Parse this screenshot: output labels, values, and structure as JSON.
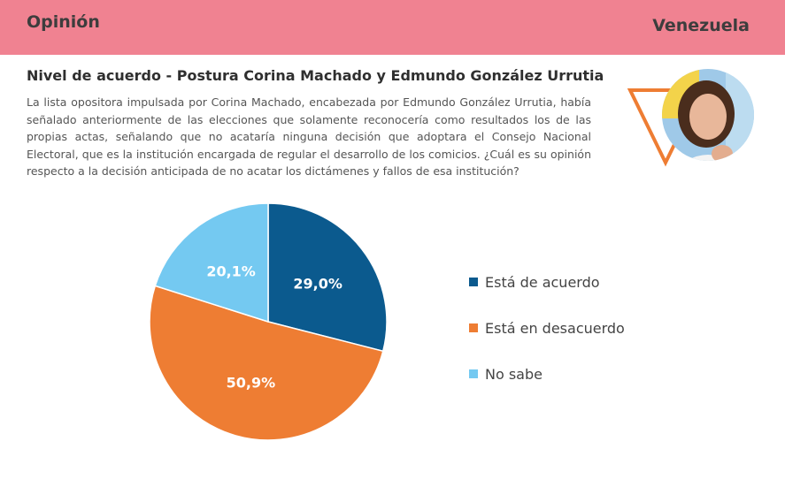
{
  "header": {
    "section": "Opinión",
    "country": "Venezuela"
  },
  "description": "La lista opositora impulsada por Corina Machado, encabezada por Edmundo González Urrutia, había señalado anteriormente de las elecciones que solamente reconocería como resultados los de las propias actas, señalando que no acataría ninguna decisión que adoptara el Consejo Nacional Electoral, que es la institución encargada de regular el desarrollo de los comicios. ¿Cuál es su opinión respecto a la decisión anticipada de no acatar los dictámenes y fallos de esa institución?",
  "colors": {
    "header_bg": "#f08291",
    "accent_triangle": "#ee7d33"
  },
  "chart_data": {
    "type": "pie",
    "title": "Nivel de acuerdo - Postura Corina Machado y Edmundo González Urrutia",
    "slices": [
      {
        "label": "Está de acuerdo",
        "value": 29.0,
        "display": "29,0%",
        "color": "#0b5a8e"
      },
      {
        "label": "Está en desacuerdo",
        "value": 50.9,
        "display": "50,9%",
        "color": "#ee7d33"
      },
      {
        "label": "No sabe",
        "value": 20.1,
        "display": "20,1%",
        "color": "#74c9f1"
      }
    ],
    "start": "12 o'clock",
    "direction": "clockwise",
    "legend_position": "right"
  }
}
